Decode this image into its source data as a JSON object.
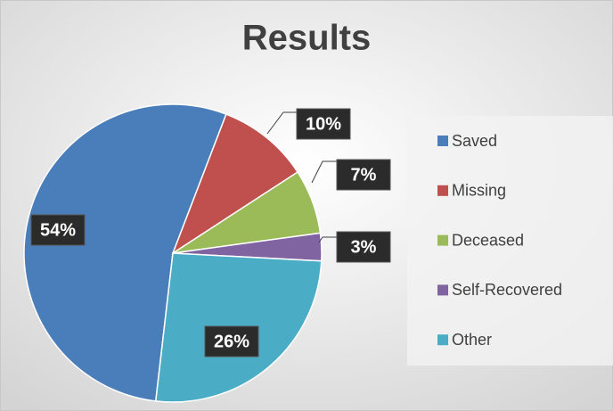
{
  "chart_data": {
    "type": "pie",
    "title": "Results",
    "categories": [
      "Saved",
      "Missing",
      "Deceased",
      "Self-Recovered",
      "Other"
    ],
    "values": [
      54,
      10,
      7,
      3,
      26
    ],
    "value_labels": [
      "54%",
      "10%",
      "7%",
      "3%",
      "26%"
    ],
    "colors": [
      "#4a7ebb",
      "#c0504d",
      "#9bbb59",
      "#8064a2",
      "#4bacc6"
    ],
    "legend": "right"
  }
}
